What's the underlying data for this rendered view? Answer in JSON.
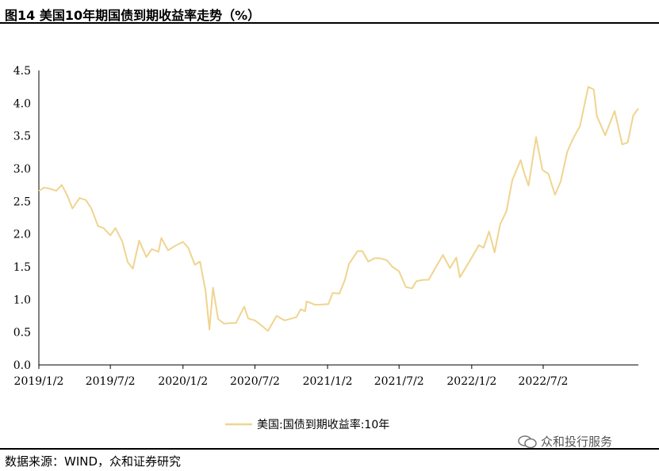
{
  "title": "图14 美国10年期国债到期收益率走势（%）",
  "source": "数据来源：WIND，众和证券研究",
  "watermark": "众和投行服务",
  "colors": {
    "series": "#F0D48F",
    "axis": "#000000"
  },
  "chart_data": {
    "type": "line",
    "title": "图14 美国10年期国债到期收益率走势（%）",
    "xlabel": "",
    "ylabel": "",
    "ylim": [
      0,
      4.5
    ],
    "yticks": [
      "0.0",
      "0.5",
      "1.0",
      "1.5",
      "2.0",
      "2.5",
      "3.0",
      "3.5",
      "4.0",
      "4.5"
    ],
    "xticks": [
      "2019/1/2",
      "2019/7/2",
      "2020/1/2",
      "2020/7/2",
      "2021/1/2",
      "2021/7/2",
      "2022/1/2",
      "2022/7/2"
    ],
    "grid": false,
    "legend": "bottom-center",
    "series": [
      {
        "name": "美国:国债到期收益率:10年",
        "color": "#F0D48F",
        "points": [
          [
            "2019-01-02",
            2.66
          ],
          [
            "2019-01-15",
            2.71
          ],
          [
            "2019-02-01",
            2.69
          ],
          [
            "2019-02-15",
            2.66
          ],
          [
            "2019-03-01",
            2.75
          ],
          [
            "2019-03-15",
            2.59
          ],
          [
            "2019-03-28",
            2.39
          ],
          [
            "2019-04-15",
            2.55
          ],
          [
            "2019-05-01",
            2.52
          ],
          [
            "2019-05-15",
            2.39
          ],
          [
            "2019-06-01",
            2.12
          ],
          [
            "2019-06-15",
            2.09
          ],
          [
            "2019-07-02",
            1.98
          ],
          [
            "2019-07-15",
            2.09
          ],
          [
            "2019-08-01",
            1.89
          ],
          [
            "2019-08-15",
            1.57
          ],
          [
            "2019-08-28",
            1.47
          ],
          [
            "2019-09-13",
            1.9
          ],
          [
            "2019-10-01",
            1.65
          ],
          [
            "2019-10-15",
            1.77
          ],
          [
            "2019-11-01",
            1.73
          ],
          [
            "2019-11-08",
            1.94
          ],
          [
            "2019-11-25",
            1.75
          ],
          [
            "2019-12-13",
            1.82
          ],
          [
            "2020-01-02",
            1.88
          ],
          [
            "2020-01-15",
            1.79
          ],
          [
            "2020-02-01",
            1.53
          ],
          [
            "2020-02-14",
            1.58
          ],
          [
            "2020-02-28",
            1.13
          ],
          [
            "2020-03-09",
            0.54
          ],
          [
            "2020-03-18",
            1.18
          ],
          [
            "2020-03-31",
            0.7
          ],
          [
            "2020-04-15",
            0.63
          ],
          [
            "2020-05-01",
            0.64
          ],
          [
            "2020-05-15",
            0.64
          ],
          [
            "2020-06-05",
            0.89
          ],
          [
            "2020-06-15",
            0.71
          ],
          [
            "2020-07-02",
            0.68
          ],
          [
            "2020-07-15",
            0.62
          ],
          [
            "2020-08-04",
            0.52
          ],
          [
            "2020-08-26",
            0.75
          ],
          [
            "2020-09-15",
            0.68
          ],
          [
            "2020-10-15",
            0.73
          ],
          [
            "2020-10-26",
            0.85
          ],
          [
            "2020-11-06",
            0.82
          ],
          [
            "2020-11-10",
            0.97
          ],
          [
            "2020-12-01",
            0.92
          ],
          [
            "2020-12-15",
            0.92
          ],
          [
            "2021-01-04",
            0.93
          ],
          [
            "2021-01-15",
            1.1
          ],
          [
            "2021-02-01",
            1.09
          ],
          [
            "2021-02-15",
            1.3
          ],
          [
            "2021-02-25",
            1.54
          ],
          [
            "2021-03-19",
            1.74
          ],
          [
            "2021-03-31",
            1.74
          ],
          [
            "2021-04-15",
            1.58
          ],
          [
            "2021-05-01",
            1.63
          ],
          [
            "2021-05-15",
            1.63
          ],
          [
            "2021-06-01",
            1.6
          ],
          [
            "2021-06-15",
            1.5
          ],
          [
            "2021-07-02",
            1.43
          ],
          [
            "2021-07-19",
            1.19
          ],
          [
            "2021-08-04",
            1.17
          ],
          [
            "2021-08-15",
            1.28
          ],
          [
            "2021-09-01",
            1.3
          ],
          [
            "2021-09-15",
            1.3
          ],
          [
            "2021-10-01",
            1.47
          ],
          [
            "2021-10-21",
            1.68
          ],
          [
            "2021-11-08",
            1.48
          ],
          [
            "2021-11-24",
            1.64
          ],
          [
            "2021-12-03",
            1.34
          ],
          [
            "2021-12-15",
            1.46
          ],
          [
            "2022-01-04",
            1.66
          ],
          [
            "2022-01-20",
            1.83
          ],
          [
            "2022-02-01",
            1.79
          ],
          [
            "2022-02-15",
            2.04
          ],
          [
            "2022-03-01",
            1.72
          ],
          [
            "2022-03-15",
            2.15
          ],
          [
            "2022-03-31",
            2.35
          ],
          [
            "2022-04-15",
            2.83
          ],
          [
            "2022-05-06",
            3.13
          ],
          [
            "2022-05-15",
            2.93
          ],
          [
            "2022-05-26",
            2.74
          ],
          [
            "2022-06-14",
            3.48
          ],
          [
            "2022-06-30",
            2.98
          ],
          [
            "2022-07-15",
            2.92
          ],
          [
            "2022-08-01",
            2.6
          ],
          [
            "2022-08-15",
            2.8
          ],
          [
            "2022-09-01",
            3.26
          ],
          [
            "2022-09-15",
            3.45
          ],
          [
            "2022-10-03",
            3.65
          ],
          [
            "2022-10-24",
            4.25
          ],
          [
            "2022-11-07",
            4.21
          ],
          [
            "2022-11-15",
            3.8
          ],
          [
            "2022-12-06",
            3.51
          ],
          [
            "2022-12-30",
            3.88
          ],
          [
            "2023-01-18",
            3.37
          ],
          [
            "2023-02-01",
            3.4
          ],
          [
            "2023-02-15",
            3.81
          ],
          [
            "2023-02-28",
            3.92
          ]
        ]
      }
    ]
  }
}
